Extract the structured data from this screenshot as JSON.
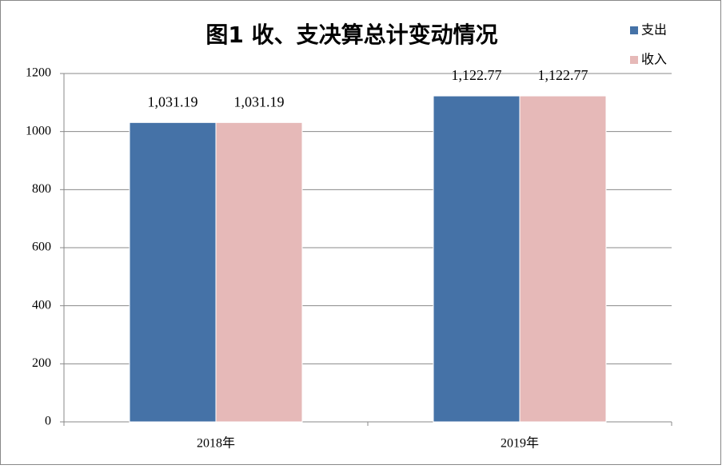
{
  "chart_data": {
    "type": "bar",
    "title": "图1  收、支决算总计变动情况",
    "categories": [
      "2018年",
      "2019年"
    ],
    "series": [
      {
        "name": "支出",
        "color": "#4572a7",
        "values": [
          1031.19,
          1122.77
        ],
        "value_labels": [
          "1,031.19",
          "1,122.77"
        ]
      },
      {
        "name": "收入",
        "color": "#e6b9b8",
        "values": [
          1031.19,
          1122.77
        ],
        "value_labels": [
          "1,031.19",
          "1,122.77"
        ]
      }
    ],
    "ylim": [
      0,
      1200
    ],
    "yticks": [
      0,
      200,
      400,
      600,
      800,
      1000,
      1200
    ],
    "grid": true,
    "legend": "top-right"
  }
}
